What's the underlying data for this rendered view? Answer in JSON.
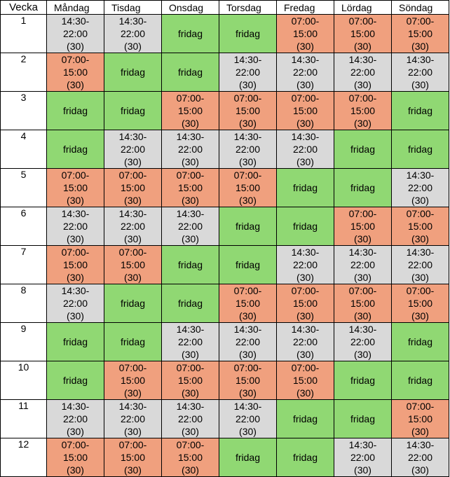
{
  "header": {
    "week": "Vecka",
    "days": [
      "Måndag",
      "Tisdag",
      "Onsdag",
      "Torsdag",
      "Fredag",
      "Lördag",
      "Söndag"
    ]
  },
  "shifts": {
    "L": {
      "time": "14:30-",
      "end": "22:00",
      "hours": "(30)",
      "color": "#d9d9d9"
    },
    "E": {
      "time": "07:00-",
      "end": "15:00",
      "hours": "(30)",
      "color": "#f0a07e"
    },
    "F": {
      "label": "fridag",
      "color": "#90d873"
    }
  },
  "rows": [
    {
      "week": "1",
      "days": [
        "L",
        "L",
        "F",
        "F",
        "E",
        "E",
        "E"
      ]
    },
    {
      "week": "2",
      "days": [
        "E",
        "F",
        "F",
        "L",
        "L",
        "L",
        "L"
      ]
    },
    {
      "week": "3",
      "days": [
        "F",
        "F",
        "E",
        "E",
        "E",
        "E",
        "F"
      ]
    },
    {
      "week": "4",
      "days": [
        "F",
        "L",
        "L",
        "L",
        "L",
        "F",
        "F"
      ]
    },
    {
      "week": "5",
      "days": [
        "E",
        "E",
        "E",
        "E",
        "F",
        "F",
        "L"
      ]
    },
    {
      "week": "6",
      "days": [
        "L",
        "L",
        "L",
        "F",
        "F",
        "E",
        "E"
      ]
    },
    {
      "week": "7",
      "days": [
        "E",
        "E",
        "F",
        "F",
        "L",
        "L",
        "L"
      ]
    },
    {
      "week": "8",
      "days": [
        "L",
        "F",
        "F",
        "E",
        "E",
        "E",
        "E"
      ]
    },
    {
      "week": "9",
      "days": [
        "F",
        "F",
        "L",
        "L",
        "L",
        "L",
        "F"
      ]
    },
    {
      "week": "10",
      "days": [
        "F",
        "E",
        "E",
        "E",
        "E",
        "F",
        "F"
      ]
    },
    {
      "week": "11",
      "days": [
        "L",
        "L",
        "L",
        "L",
        "F",
        "F",
        "E"
      ]
    },
    {
      "week": "12",
      "days": [
        "E",
        "E",
        "E",
        "F",
        "F",
        "L",
        "L"
      ]
    }
  ]
}
